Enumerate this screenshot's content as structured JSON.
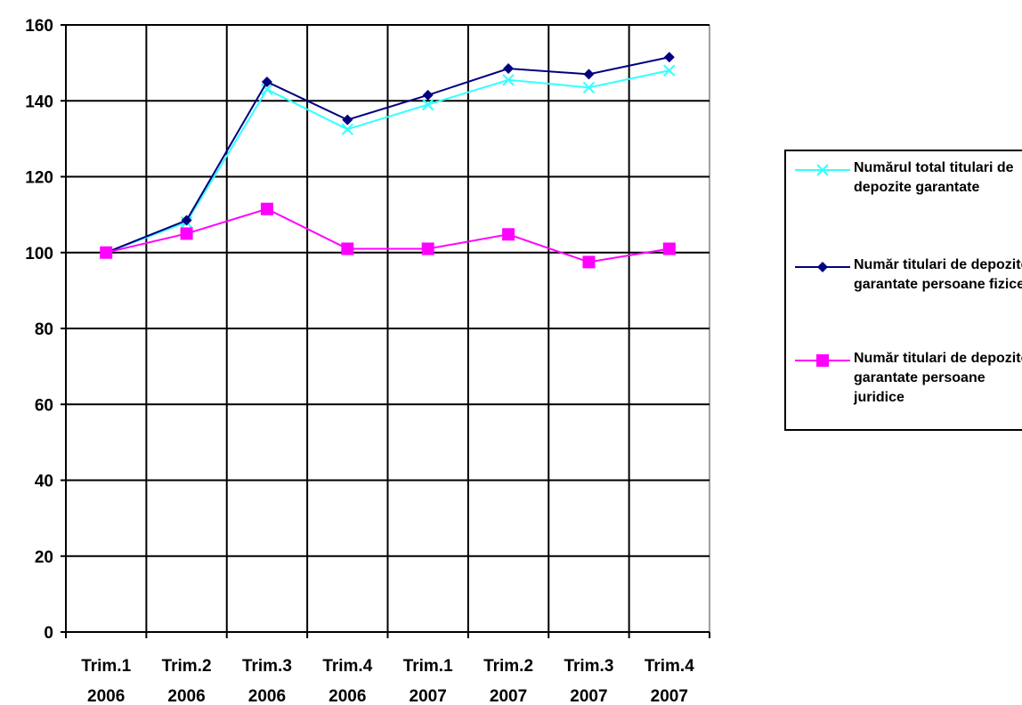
{
  "chart_data": {
    "type": "line",
    "categories": [
      "Trim.1\n2006",
      "Trim.2\n2006",
      "Trim.3\n2006",
      "Trim.4\n2006",
      "Trim.1\n2007",
      "Trim.2\n2007",
      "Trim.3\n2007",
      "Trim.4\n2007"
    ],
    "ylim": [
      0,
      160
    ],
    "yticks": [
      "0",
      "20",
      "40",
      "60",
      "80",
      "100",
      "120",
      "140",
      "160"
    ],
    "grid": true,
    "legend_position": "right",
    "series": [
      {
        "name": "Numărul total titulari de depozite garantate",
        "color": "#33ffff",
        "marker": "x",
        "values": [
          100,
          108,
          143,
          132.5,
          139,
          145.5,
          143.5,
          148
        ]
      },
      {
        "name": "Număr titulari de depozite garantate persoane fizice",
        "color": "#000080",
        "marker": "diamond",
        "values": [
          100,
          108.5,
          145,
          135,
          141.5,
          148.5,
          147,
          151.5
        ]
      },
      {
        "name": "Număr titulari de depozite garantate persoane juridice",
        "color": "#ff00ff",
        "marker": "square",
        "values": [
          100,
          105,
          111.5,
          101,
          101,
          104.8,
          97.5,
          101
        ]
      }
    ]
  }
}
